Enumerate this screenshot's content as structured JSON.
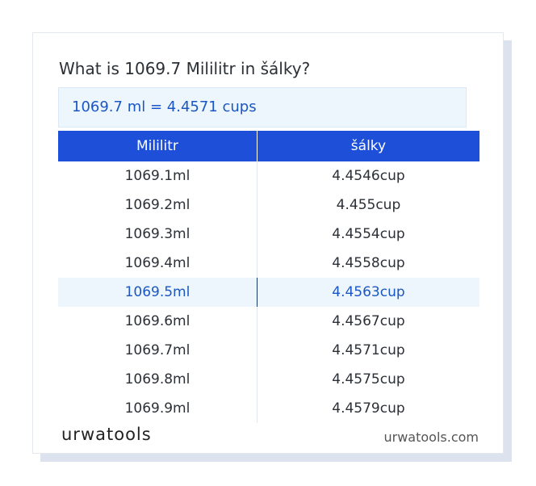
{
  "header": {
    "title": "What is 1069.7 Mililitr in šálky?"
  },
  "result": "1069.7 ml = 4.4571 cups",
  "table": {
    "columns": [
      "Mililitr",
      "šálky"
    ],
    "rows": [
      [
        "1069.1ml",
        "4.4546cup"
      ],
      [
        "1069.2ml",
        "4.455cup"
      ],
      [
        "1069.3ml",
        "4.4554cup"
      ],
      [
        "1069.4ml",
        "4.4558cup"
      ],
      [
        "1069.5ml",
        "4.4563cup"
      ],
      [
        "1069.6ml",
        "4.4567cup"
      ],
      [
        "1069.7ml",
        "4.4571cup"
      ],
      [
        "1069.8ml",
        "4.4575cup"
      ],
      [
        "1069.9ml",
        "4.4579cup"
      ]
    ],
    "highlighted_row": 4
  },
  "footer": {
    "brand": "urwatools",
    "site": "urwatools.com"
  }
}
